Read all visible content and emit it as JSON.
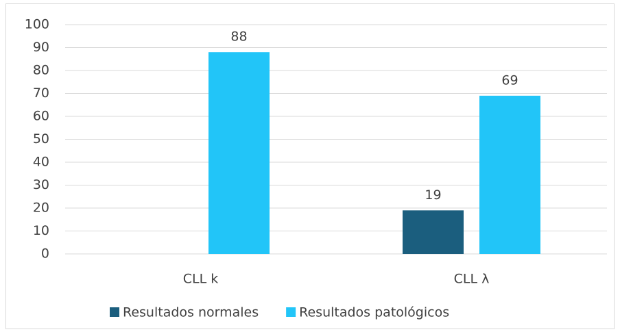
{
  "chart_data": {
    "type": "bar",
    "categories": [
      "CLL k",
      "CLL λ"
    ],
    "series": [
      {
        "name": "Resultados normales",
        "color": "#1b5e7e",
        "values": [
          null,
          19
        ]
      },
      {
        "name": "Resultados patológicos",
        "color": "#22c5f8",
        "values": [
          88,
          69
        ]
      }
    ],
    "ylim": [
      0,
      100
    ],
    "yticks": [
      0,
      10,
      20,
      30,
      40,
      50,
      60,
      70,
      80,
      90,
      100
    ],
    "grid": true,
    "legend": "bottom"
  }
}
